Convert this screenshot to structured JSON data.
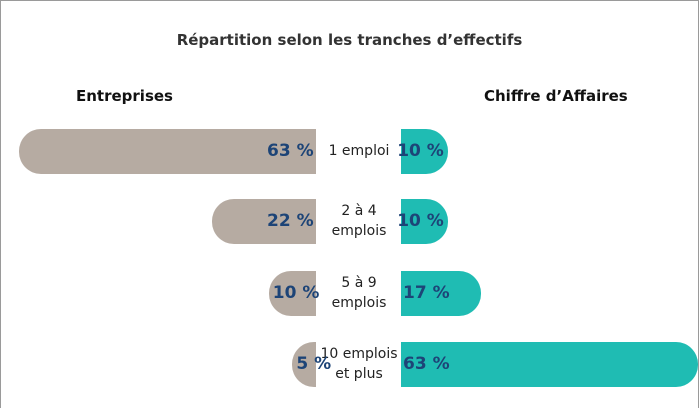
{
  "chart_data": {
    "type": "butterfly-bar",
    "title": "Répartition selon les tranches d’effectifs",
    "categories": [
      "1 emploi",
      "2 à 4 emplois",
      "5 à 9 emplois",
      "10 emplois et plus"
    ],
    "series": [
      {
        "name": "Entreprises",
        "color": "#b6aba2",
        "values": [
          63,
          22,
          10,
          5
        ],
        "value_labels": [
          "63 %",
          "22 %",
          "10 %",
          "5 %"
        ]
      },
      {
        "name": "Chiffre d’Affaires",
        "color": "#1fbcb3",
        "values": [
          10,
          10,
          17,
          63
        ],
        "value_labels": [
          "10 %",
          "10 %",
          "17 %",
          "63 %"
        ]
      }
    ],
    "label_color": "#1d4477"
  }
}
